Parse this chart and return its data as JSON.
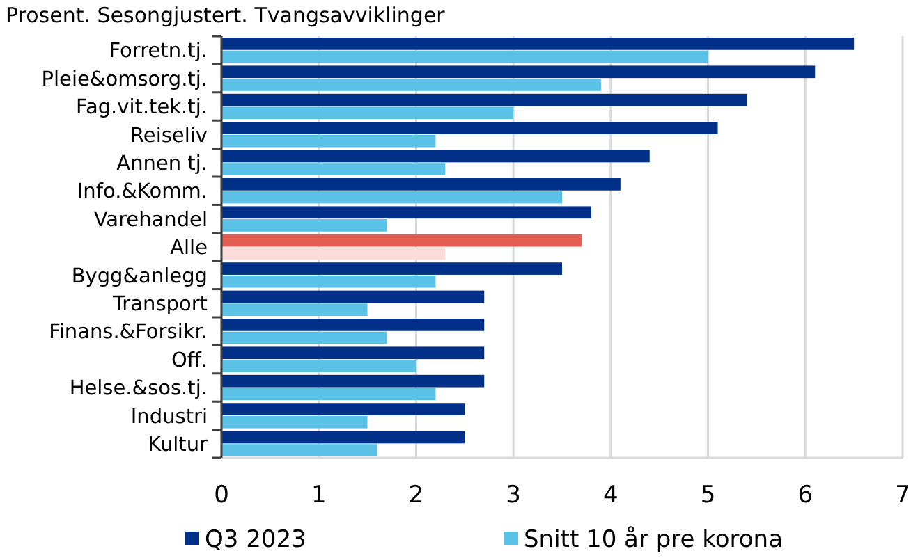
{
  "chart_data": {
    "type": "bar",
    "orientation": "horizontal",
    "title": "Prosent. Sesongjustert. Tvangsavviklinger",
    "categories": [
      "Forretn.tj.",
      "Pleie&omsorg.tj.",
      "Fag.vit.tek.tj.",
      "Reiseliv",
      "Annen tj.",
      "Info.&Komm.",
      "Varehandel",
      "Alle",
      "Bygg&anlegg",
      "Transport",
      "Finans.&Forsikr.",
      "Off.",
      "Helse.&sos.tj.",
      "Industri",
      "Kultur"
    ],
    "series": [
      {
        "name": "Q3 2023",
        "color": "#003087",
        "colors": [
          "#003087",
          "#003087",
          "#003087",
          "#003087",
          "#003087",
          "#003087",
          "#003087",
          "#e35d52",
          "#003087",
          "#003087",
          "#003087",
          "#003087",
          "#003087",
          "#003087",
          "#003087"
        ],
        "values": [
          6.5,
          6.1,
          5.4,
          5.1,
          4.4,
          4.1,
          3.8,
          3.7,
          3.5,
          2.7,
          2.7,
          2.7,
          2.7,
          2.5,
          2.5
        ]
      },
      {
        "name": "Snitt 10 år pre korona",
        "color": "#5bc2e7",
        "colors": [
          "#5bc2e7",
          "#5bc2e7",
          "#5bc2e7",
          "#5bc2e7",
          "#5bc2e7",
          "#5bc2e7",
          "#5bc2e7",
          "#fadcd9",
          "#5bc2e7",
          "#5bc2e7",
          "#5bc2e7",
          "#5bc2e7",
          "#5bc2e7",
          "#5bc2e7",
          "#5bc2e7"
        ],
        "values": [
          5.0,
          3.9,
          3.0,
          2.2,
          2.3,
          3.5,
          1.7,
          2.3,
          2.2,
          1.5,
          1.7,
          2.0,
          2.2,
          1.5,
          1.6
        ]
      }
    ],
    "xlim": [
      0,
      7
    ],
    "xticks": [
      0,
      1,
      2,
      3,
      4,
      5,
      6,
      7
    ],
    "grid": "x",
    "legend": "bottom"
  }
}
